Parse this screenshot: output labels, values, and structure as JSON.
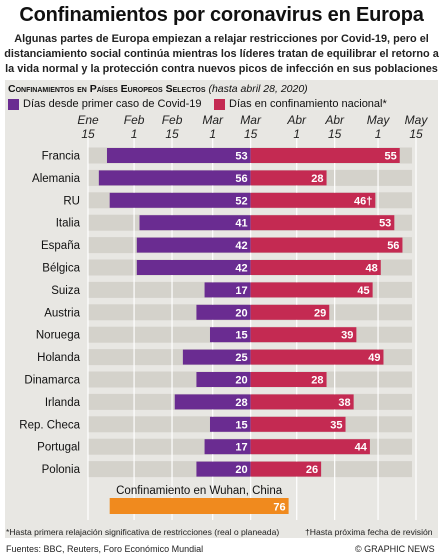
{
  "header": {
    "title": "Confinamientos por coronavirus en Europa",
    "subtitle": "Algunas partes de Europa empiezan a relajar restricciones por Covid-19, pero el distanciamiento social continúa mientras los líderes tratan de equilibrar el retorno a la vida normal y la protección contra nuevos picos de infección en sus poblaciones"
  },
  "section": {
    "title": "Confinamientos en Países Europeos Selectos",
    "date_note": "(hasta abril 28, 2020)"
  },
  "legend": {
    "purple_label": "Días desde primer caso de Covid-19",
    "red_label": "Días en confinamiento nacional*"
  },
  "colors": {
    "purple": "#6a2c91",
    "red": "#c42a52",
    "orange": "#f08a1e",
    "row": "#d4d2cb"
  },
  "chart_data": {
    "type": "bar",
    "orientation": "horizontal-stacked",
    "x_axis": {
      "ticks": [
        {
          "month": "Ene",
          "day": "15",
          "date": "2020-01-15"
        },
        {
          "month": "Feb",
          "day": "1",
          "date": "2020-02-01"
        },
        {
          "month": "Feb",
          "day": "15",
          "date": "2020-02-15"
        },
        {
          "month": "Mar",
          "day": "1",
          "date": "2020-03-01"
        },
        {
          "month": "Mar",
          "day": "15",
          "date": "2020-03-15"
        },
        {
          "month": "Abr",
          "day": "1",
          "date": "2020-04-01"
        },
        {
          "month": "Abr",
          "day": "15",
          "date": "2020-04-15"
        },
        {
          "month": "May",
          "day": "1",
          "date": "2020-05-01"
        },
        {
          "month": "May",
          "day": "15",
          "date": "2020-05-15"
        }
      ],
      "xlim": [
        "2020-01-15",
        "2020-05-15"
      ]
    },
    "series": [
      {
        "name": "Días desde primer caso de Covid-19",
        "values": [
          53,
          56,
          52,
          41,
          42,
          42,
          17,
          20,
          15,
          25,
          20,
          28,
          15,
          17,
          20
        ]
      },
      {
        "name": "Días en confinamiento nacional*",
        "values": [
          55,
          28,
          46,
          53,
          56,
          48,
          45,
          29,
          39,
          49,
          28,
          38,
          35,
          44,
          26
        ]
      }
    ],
    "rows": [
      {
        "country": "Francia",
        "first_case": 53,
        "lockdown": 55,
        "lockdown_label": "55"
      },
      {
        "country": "Alemania",
        "first_case": 56,
        "lockdown": 28,
        "lockdown_label": "28"
      },
      {
        "country": "RU",
        "first_case": 52,
        "lockdown": 46,
        "lockdown_label": "46†"
      },
      {
        "country": "Italia",
        "first_case": 41,
        "lockdown": 53,
        "lockdown_label": "53"
      },
      {
        "country": "España",
        "first_case": 42,
        "lockdown": 56,
        "lockdown_label": "56"
      },
      {
        "country": "Bélgica",
        "first_case": 42,
        "lockdown": 48,
        "lockdown_label": "48"
      },
      {
        "country": "Suiza",
        "first_case": 17,
        "lockdown": 45,
        "lockdown_label": "45"
      },
      {
        "country": "Austria",
        "first_case": 20,
        "lockdown": 29,
        "lockdown_label": "29"
      },
      {
        "country": "Noruega",
        "first_case": 15,
        "lockdown": 39,
        "lockdown_label": "39"
      },
      {
        "country": "Holanda",
        "first_case": 25,
        "lockdown": 49,
        "lockdown_label": "49"
      },
      {
        "country": "Dinamarca",
        "first_case": 20,
        "lockdown": 28,
        "lockdown_label": "28"
      },
      {
        "country": "Irlanda",
        "first_case": 28,
        "lockdown": 38,
        "lockdown_label": "38"
      },
      {
        "country": "Rep. Checa",
        "first_case": 15,
        "lockdown": 35,
        "lockdown_label": "35"
      },
      {
        "country": "Portugal",
        "first_case": 17,
        "lockdown": 44,
        "lockdown_label": "44"
      },
      {
        "country": "Polonia",
        "first_case": 20,
        "lockdown": 26,
        "lockdown_label": "26"
      }
    ],
    "wuhan": {
      "label": "Confinamiento en Wuhan, China",
      "value": 76
    },
    "grid": true
  },
  "footnotes": {
    "asterisk": "*Hasta primera relajación significativa de restricciones (real o planeada)",
    "dagger": "†Hasta próxima fecha de revisión",
    "sources": "Fuentes: BBC, Reuters, Foro Económico Mundial",
    "credit": "© GRAPHIC NEWS"
  }
}
